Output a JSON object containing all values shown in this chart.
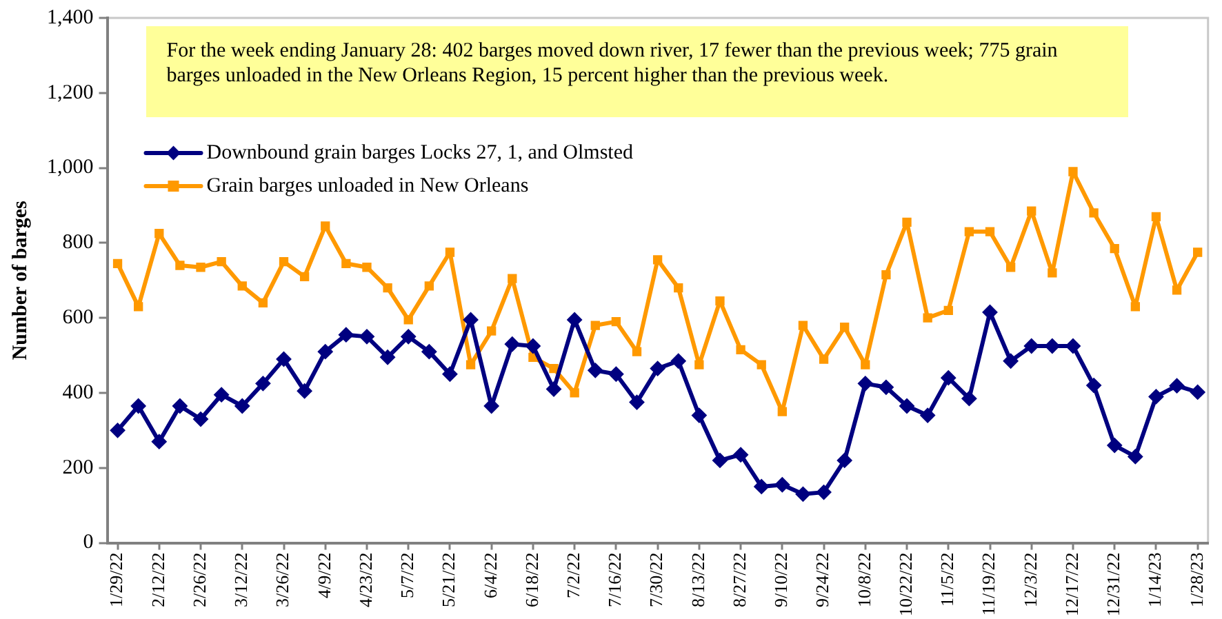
{
  "chart_data": {
    "type": "line",
    "ylabel": "Number of barges",
    "annotations": [
      "For the week ending January 28: 402 barges moved down river, 17 fewer than the previous week; 775 grain barges unloaded in the New Orleans Region, 15 percent higher than the previous week."
    ],
    "categories": [
      "1/29/22",
      null,
      "2/12/22",
      null,
      "2/26/22",
      null,
      "3/12/22",
      null,
      "3/26/22",
      null,
      "4/9/22",
      null,
      "4/23/22",
      null,
      "5/7/22",
      null,
      "5/21/22",
      null,
      "6/4/22",
      null,
      "6/18/22",
      null,
      "7/2/22",
      null,
      "7/16/22",
      null,
      "7/30/22",
      null,
      "8/13/22",
      null,
      "8/27/22",
      null,
      "9/10/22",
      null,
      "9/24/22",
      null,
      "10/8/22",
      null,
      "10/22/22",
      null,
      "11/5/22",
      null,
      "11/19/22",
      null,
      "12/3/22",
      null,
      "12/17/22",
      null,
      "12/31/22",
      null,
      "1/14/23",
      null,
      "1/28/23"
    ],
    "series": [
      {
        "name": "Downbound grain barges Locks 27, 1, and Olmsted",
        "color": "#000080",
        "marker": "diamond",
        "values": [
          300,
          365,
          270,
          365,
          330,
          395,
          365,
          425,
          490,
          405,
          510,
          555,
          550,
          495,
          550,
          510,
          450,
          595,
          365,
          530,
          525,
          410,
          595,
          460,
          450,
          375,
          465,
          485,
          340,
          220,
          235,
          150,
          155,
          130,
          135,
          220,
          425,
          415,
          365,
          340,
          440,
          385,
          615,
          485,
          525,
          525,
          525,
          420,
          260,
          230,
          390,
          419,
          402
        ]
      },
      {
        "name": "Grain barges unloaded in New Orleans",
        "color": "#ff9900",
        "marker": "square",
        "values": [
          745,
          630,
          825,
          740,
          735,
          750,
          685,
          640,
          750,
          710,
          845,
          745,
          735,
          680,
          595,
          685,
          775,
          475,
          565,
          705,
          495,
          465,
          400,
          580,
          590,
          510,
          755,
          680,
          475,
          645,
          515,
          475,
          350,
          580,
          490,
          575,
          475,
          715,
          855,
          600,
          620,
          830,
          830,
          735,
          885,
          720,
          990,
          880,
          785,
          630,
          870,
          674,
          775
        ]
      }
    ],
    "ylim": [
      0,
      1400
    ],
    "yticks": [
      0,
      200,
      400,
      600,
      800,
      {
        "value": 1000,
        "label": "1,000"
      },
      {
        "value": 1200,
        "label": "1,200"
      },
      {
        "value": 1400,
        "label": "1,400"
      }
    ],
    "legend": "top left",
    "line_style": "solid"
  }
}
